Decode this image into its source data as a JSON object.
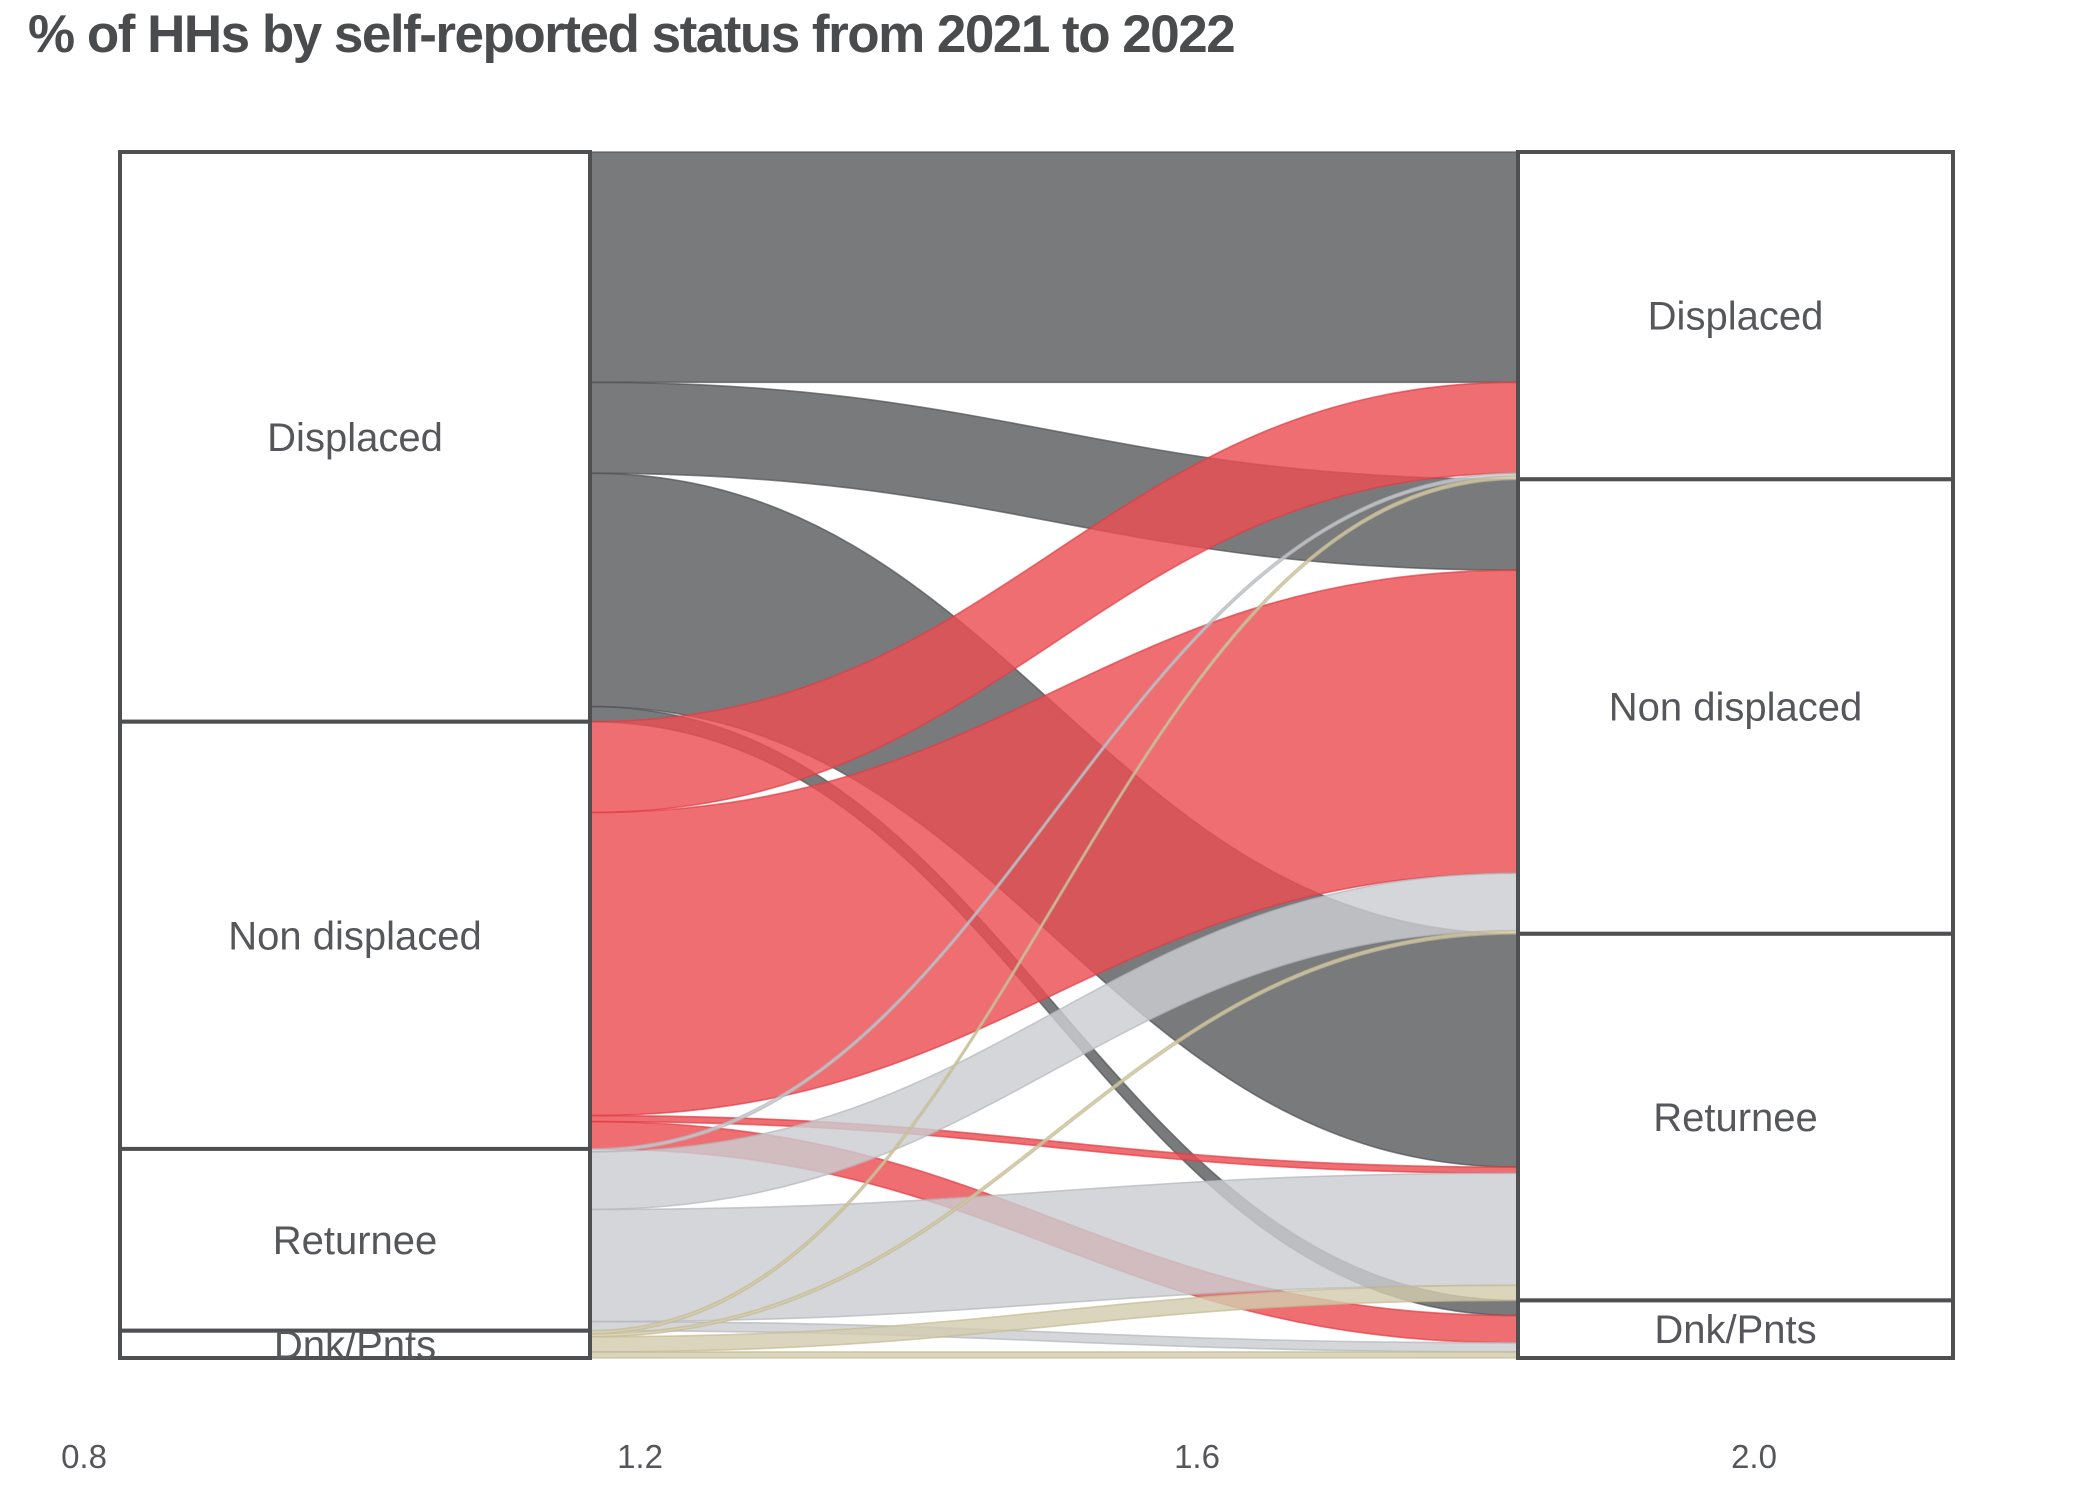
{
  "title": "% of HHs by self-reported status from 2021 to 2022",
  "chart_data": {
    "type": "sankey",
    "title": "% of HHs by self-reported status from 2021 to 2022",
    "column_years": [
      "2021",
      "2022"
    ],
    "categories": [
      "Displaced",
      "Non displaced",
      "Returnee",
      "Dnk/Pnts"
    ],
    "x_axis": {
      "ticks": [
        "0.8",
        "1.2",
        "1.6",
        "2.0"
      ],
      "grid": false,
      "axis_line": false
    },
    "flows_pct_from_2021_to_2022": [
      [
        19.0,
        7.5,
        19.25,
        1.25
      ],
      [
        7.5,
        25.0,
        0.5,
        2.25
      ],
      [
        0.25,
        4.75,
        9.25,
        0.75
      ],
      [
        0.25,
        0.25,
        1.25,
        0.5
      ]
    ],
    "left_totals_pct": [
      47.0,
      35.25,
      15.0,
      2.25
    ],
    "right_totals_pct": [
      27.0,
      37.5,
      30.25,
      4.75
    ],
    "legend": {
      "shown": false
    },
    "colors": {
      "flow_fill_by_origin": [
        "#5b5d5f",
        "#ea4e53",
        "#cbcdd2",
        "#d3ccaf"
      ],
      "flow_edge_by_origin": [
        "#505254",
        "#e23c45",
        "#b4b6bc",
        "#c4ba92"
      ],
      "flow_opacity": 0.82,
      "stratum_fill": "#ffffff",
      "stratum_border": "#4e4f51",
      "stratum_label": "#56575a",
      "tick_label": "#55565a",
      "title": "#4a4b4d"
    }
  }
}
